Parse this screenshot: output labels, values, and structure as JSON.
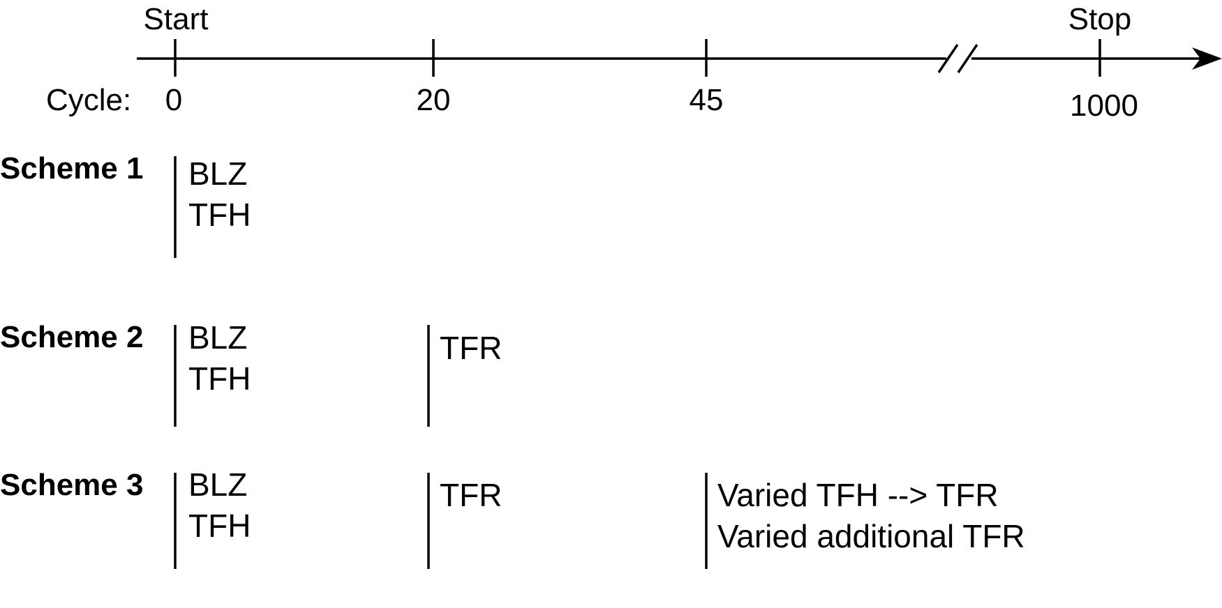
{
  "timeline": {
    "start_label": "Start",
    "stop_label": "Stop",
    "cycle_prefix": "Cycle:",
    "ticks": [
      {
        "cycle": "0"
      },
      {
        "cycle": "20"
      },
      {
        "cycle": "45"
      },
      {
        "cycle": "1000"
      }
    ]
  },
  "schemes": [
    {
      "title": "Scheme 1",
      "events": [
        {
          "at_cycle": "0",
          "lines": [
            "BLZ",
            "TFH"
          ]
        }
      ]
    },
    {
      "title": "Scheme 2",
      "events": [
        {
          "at_cycle": "0",
          "lines": [
            "BLZ",
            "TFH"
          ]
        },
        {
          "at_cycle": "20",
          "lines": [
            "TFR"
          ]
        }
      ]
    },
    {
      "title": "Scheme 3",
      "events": [
        {
          "at_cycle": "0",
          "lines": [
            "BLZ",
            "TFH"
          ]
        },
        {
          "at_cycle": "20",
          "lines": [
            "TFR"
          ]
        },
        {
          "at_cycle": "45",
          "lines": [
            "Varied TFH --> TFR",
            "Varied additional TFR"
          ]
        }
      ]
    }
  ]
}
